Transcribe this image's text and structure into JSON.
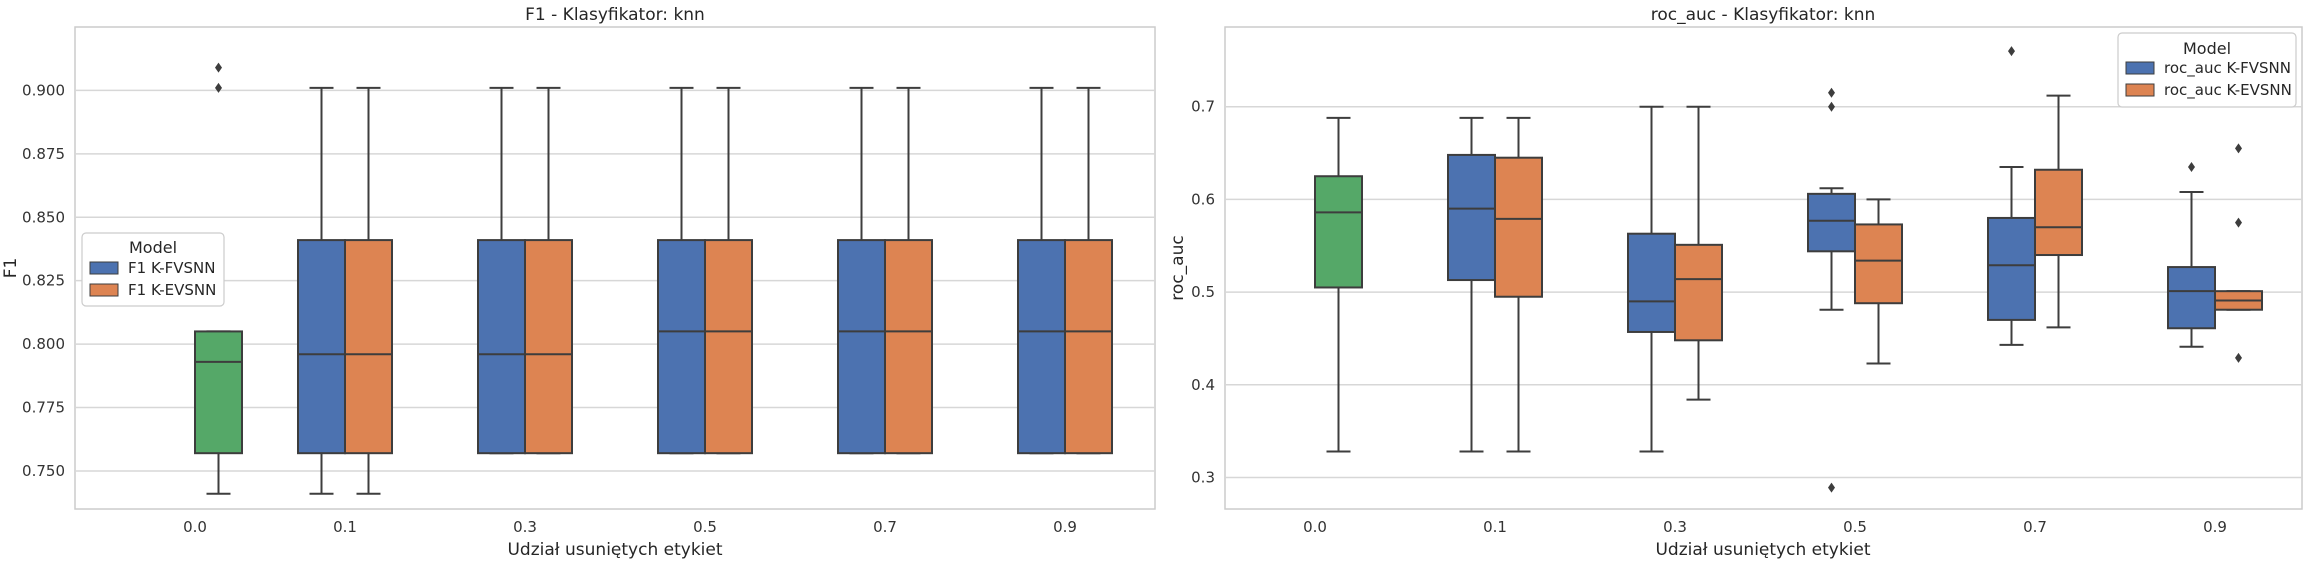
{
  "chart_data": [
    {
      "type": "box",
      "title": "F1 - Klasyfikator: knn",
      "xlabel": "Udział usuniętych etykiet",
      "ylabel": "F1",
      "categories": [
        "0.0",
        "0.1",
        "0.3",
        "0.5",
        "0.7",
        "0.9"
      ],
      "ylim": [
        0.735,
        0.925
      ],
      "yticks": [
        "0.750",
        "0.775",
        "0.800",
        "0.825",
        "0.850",
        "0.875",
        "0.900"
      ],
      "grid": true,
      "legend": {
        "title": "Model",
        "position": "center-left",
        "entries": [
          "F1 K-FVSNN",
          "F1 K-EVSNN"
        ]
      },
      "baseline": {
        "category": "0.0",
        "color": "#55a868",
        "box": {
          "whislo": 0.741,
          "q1": 0.757,
          "med": 0.793,
          "q3": 0.805,
          "whishi": 0.805,
          "fliers": [
            0.901,
            0.909
          ]
        }
      },
      "series": [
        {
          "name": "F1 K-FVSNN",
          "color": "#4c72b0",
          "boxes": [
            {
              "category": "0.1",
              "whislo": 0.741,
              "q1": 0.757,
              "med": 0.796,
              "q3": 0.841,
              "whishi": 0.901,
              "fliers": []
            },
            {
              "category": "0.3",
              "whislo": 0.757,
              "q1": 0.757,
              "med": 0.796,
              "q3": 0.841,
              "whishi": 0.901,
              "fliers": []
            },
            {
              "category": "0.5",
              "whislo": 0.757,
              "q1": 0.757,
              "med": 0.805,
              "q3": 0.841,
              "whishi": 0.901,
              "fliers": []
            },
            {
              "category": "0.7",
              "whislo": 0.757,
              "q1": 0.757,
              "med": 0.805,
              "q3": 0.841,
              "whishi": 0.901,
              "fliers": []
            },
            {
              "category": "0.9",
              "whislo": 0.757,
              "q1": 0.757,
              "med": 0.805,
              "q3": 0.841,
              "whishi": 0.901,
              "fliers": []
            }
          ]
        },
        {
          "name": "F1 K-EVSNN",
          "color": "#dd8452",
          "boxes": [
            {
              "category": "0.1",
              "whislo": 0.741,
              "q1": 0.757,
              "med": 0.796,
              "q3": 0.841,
              "whishi": 0.901,
              "fliers": []
            },
            {
              "category": "0.3",
              "whislo": 0.757,
              "q1": 0.757,
              "med": 0.796,
              "q3": 0.841,
              "whishi": 0.901,
              "fliers": []
            },
            {
              "category": "0.5",
              "whislo": 0.757,
              "q1": 0.757,
              "med": 0.805,
              "q3": 0.841,
              "whishi": 0.901,
              "fliers": []
            },
            {
              "category": "0.7",
              "whislo": 0.757,
              "q1": 0.757,
              "med": 0.805,
              "q3": 0.841,
              "whishi": 0.901,
              "fliers": []
            },
            {
              "category": "0.9",
              "whislo": 0.757,
              "q1": 0.757,
              "med": 0.805,
              "q3": 0.841,
              "whishi": 0.901,
              "fliers": []
            }
          ]
        }
      ]
    },
    {
      "type": "box",
      "title": "roc_auc - Klasyfikator: knn",
      "xlabel": "Udział usuniętych etykiet",
      "ylabel": "roc_auc",
      "categories": [
        "0.0",
        "0.1",
        "0.3",
        "0.5",
        "0.7",
        "0.9"
      ],
      "ylim": [
        0.266,
        0.786
      ],
      "yticks": [
        "0.3",
        "0.4",
        "0.5",
        "0.6",
        "0.7"
      ],
      "grid": true,
      "legend": {
        "title": "Model",
        "position": "top-right",
        "entries": [
          "roc_auc K-FVSNN",
          "roc_auc K-EVSNN"
        ]
      },
      "baseline": {
        "category": "0.0",
        "color": "#55a868",
        "box": {
          "whislo": 0.328,
          "q1": 0.505,
          "med": 0.586,
          "q3": 0.625,
          "whishi": 0.688,
          "fliers": []
        }
      },
      "series": [
        {
          "name": "roc_auc K-FVSNN",
          "color": "#4c72b0",
          "boxes": [
            {
              "category": "0.1",
              "whislo": 0.328,
              "q1": 0.513,
              "med": 0.59,
              "q3": 0.648,
              "whishi": 0.688,
              "fliers": []
            },
            {
              "category": "0.3",
              "whislo": 0.328,
              "q1": 0.457,
              "med": 0.49,
              "q3": 0.563,
              "whishi": 0.7,
              "fliers": []
            },
            {
              "category": "0.5",
              "whislo": 0.481,
              "q1": 0.544,
              "med": 0.577,
              "q3": 0.606,
              "whishi": 0.612,
              "fliers": [
                0.715,
                0.7,
                0.289
              ]
            },
            {
              "category": "0.7",
              "whislo": 0.443,
              "q1": 0.47,
              "med": 0.529,
              "q3": 0.58,
              "whishi": 0.635,
              "fliers": [
                0.76
              ]
            },
            {
              "category": "0.9",
              "whislo": 0.441,
              "q1": 0.461,
              "med": 0.501,
              "q3": 0.527,
              "whishi": 0.608,
              "fliers": [
                0.635
              ]
            }
          ]
        },
        {
          "name": "roc_auc K-EVSNN",
          "color": "#dd8452",
          "boxes": [
            {
              "category": "0.1",
              "whislo": 0.328,
              "q1": 0.495,
              "med": 0.579,
              "q3": 0.645,
              "whishi": 0.688,
              "fliers": []
            },
            {
              "category": "0.3",
              "whislo": 0.384,
              "q1": 0.448,
              "med": 0.514,
              "q3": 0.551,
              "whishi": 0.7,
              "fliers": []
            },
            {
              "category": "0.5",
              "whislo": 0.423,
              "q1": 0.488,
              "med": 0.534,
              "q3": 0.573,
              "whishi": 0.6,
              "fliers": []
            },
            {
              "category": "0.7",
              "whislo": 0.462,
              "q1": 0.54,
              "med": 0.57,
              "q3": 0.632,
              "whishi": 0.712,
              "fliers": []
            },
            {
              "category": "0.9",
              "whislo": 0.481,
              "q1": 0.481,
              "med": 0.491,
              "q3": 0.501,
              "whishi": 0.501,
              "fliers": [
                0.655,
                0.575,
                0.429
              ]
            }
          ]
        }
      ]
    }
  ]
}
